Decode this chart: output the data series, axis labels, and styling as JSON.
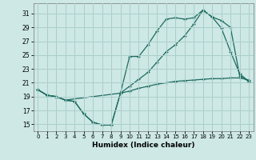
{
  "xlabel": "Humidex (Indice chaleur)",
  "xlim": [
    -0.5,
    23.5
  ],
  "ylim": [
    14.0,
    32.5
  ],
  "yticks": [
    15,
    17,
    19,
    21,
    23,
    25,
    27,
    29,
    31
  ],
  "xticks": [
    0,
    1,
    2,
    3,
    4,
    5,
    6,
    7,
    8,
    9,
    10,
    11,
    12,
    13,
    14,
    15,
    16,
    17,
    18,
    19,
    20,
    21,
    22,
    23
  ],
  "bg_color": "#cde8e5",
  "grid_color": "#aacfcc",
  "line_color": "#1e6b60",
  "line1_x": [
    0,
    1,
    2,
    3,
    4,
    5,
    6,
    7,
    8,
    9,
    10,
    11,
    12,
    13,
    14,
    15,
    16,
    17,
    18,
    19,
    20,
    21,
    22,
    23
  ],
  "line1_y": [
    20.0,
    19.2,
    19.0,
    18.5,
    18.3,
    16.5,
    15.3,
    14.9,
    14.9,
    19.5,
    19.8,
    20.2,
    20.5,
    20.8,
    21.0,
    21.2,
    21.3,
    21.4,
    21.5,
    21.6,
    21.6,
    21.7,
    21.7,
    21.4
  ],
  "line2_x": [
    0,
    1,
    2,
    3,
    4,
    5,
    6,
    7,
    8,
    9,
    10,
    11,
    12,
    13,
    14,
    15,
    16,
    17,
    18,
    19,
    20,
    21,
    22,
    23
  ],
  "line2_y": [
    20.0,
    19.2,
    19.0,
    18.5,
    18.3,
    16.5,
    15.3,
    14.9,
    14.9,
    19.5,
    24.8,
    24.8,
    26.5,
    28.5,
    30.2,
    30.4,
    30.2,
    30.4,
    31.5,
    30.5,
    28.9,
    25.5,
    22.3,
    21.2
  ],
  "line3_x": [
    0,
    1,
    2,
    3,
    9,
    10,
    11,
    12,
    13,
    14,
    15,
    16,
    17,
    18,
    19,
    20,
    21,
    22,
    23
  ],
  "line3_y": [
    20.0,
    19.2,
    19.0,
    18.5,
    19.5,
    20.5,
    21.5,
    22.5,
    24.0,
    25.5,
    26.5,
    27.8,
    29.5,
    31.5,
    30.5,
    30.0,
    29.0,
    22.0,
    21.2
  ]
}
